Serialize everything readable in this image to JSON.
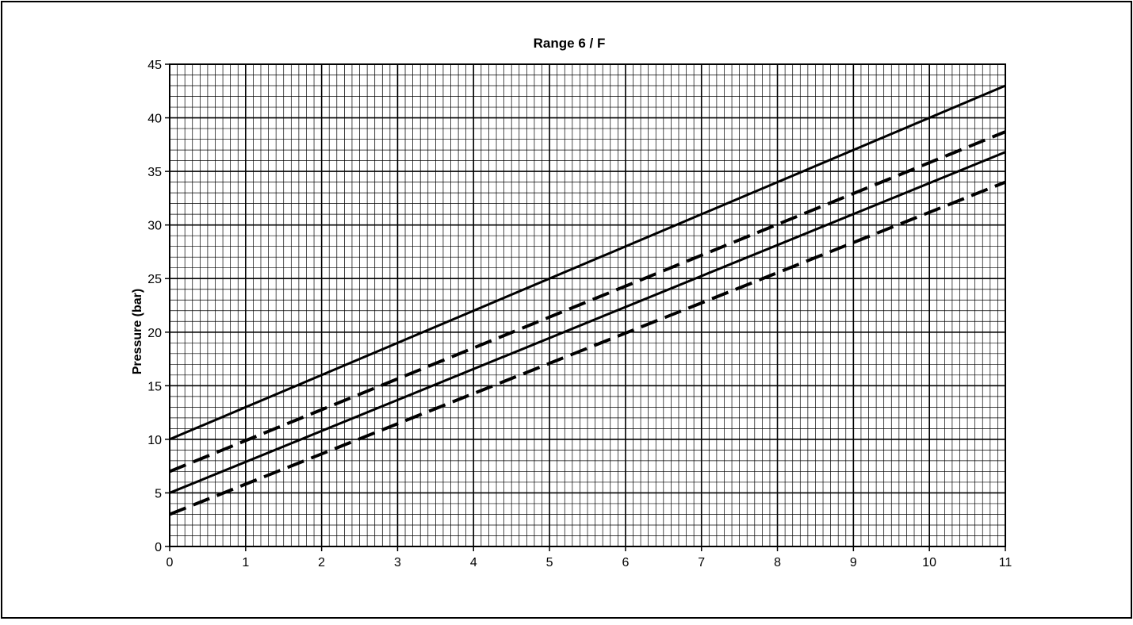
{
  "chart_data": {
    "type": "line",
    "title": "Range 6 / F",
    "xlabel": "",
    "ylabel": "Pressure (bar)",
    "xlim": [
      0,
      11
    ],
    "ylim": [
      0,
      45
    ],
    "x_ticks": [
      "0",
      "1",
      "2",
      "3",
      "4",
      "5",
      "6",
      "7",
      "8",
      "9",
      "10",
      "11"
    ],
    "y_ticks": [
      "0",
      "5",
      "10",
      "15",
      "20",
      "25",
      "30",
      "35",
      "40",
      "45"
    ],
    "grid": true,
    "minor_grid": true,
    "legend": "none",
    "line_color": "#000000",
    "series": [
      {
        "style": "solid",
        "x": [
          0,
          11
        ],
        "y": [
          10,
          43
        ]
      },
      {
        "style": "dashed",
        "x": [
          0,
          11
        ],
        "y": [
          7,
          38.7
        ]
      },
      {
        "style": "solid",
        "x": [
          0,
          11
        ],
        "y": [
          5,
          36.8
        ]
      },
      {
        "style": "dashed",
        "x": [
          0,
          11
        ],
        "y": [
          3,
          34
        ]
      }
    ]
  }
}
